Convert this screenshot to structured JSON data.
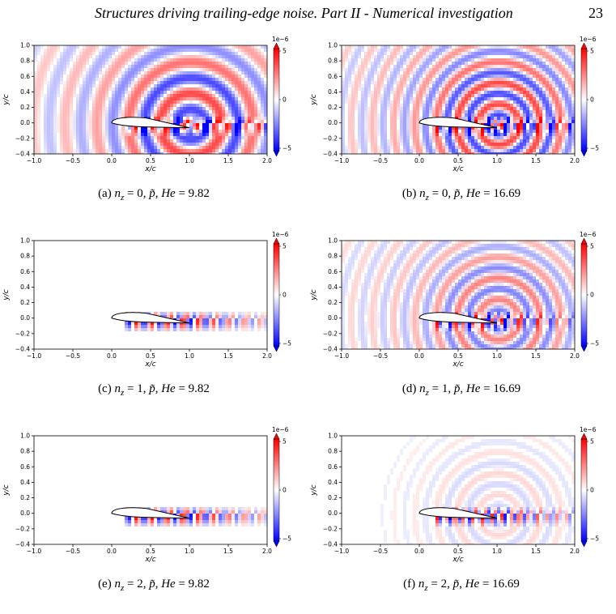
{
  "header": {
    "running_title": "Structures driving trailing-edge noise. Part II - Numerical investigation",
    "page_number": "23"
  },
  "axes": {
    "xlabel": "x/c",
    "ylabel": "y/c",
    "xticks": [
      "−1.0",
      "−0.5",
      "0.0",
      "0.5",
      "1.0",
      "1.5",
      "2.0"
    ],
    "yticks": [
      "−0.4",
      "−0.2",
      "0.0",
      "0.2",
      "0.4",
      "0.6",
      "0.8",
      "1.0"
    ],
    "xlim": [
      -1.0,
      2.0
    ],
    "ylim": [
      -0.4,
      1.0
    ],
    "colorbar_scale": "1e−6",
    "colorbar_ticks": [
      "5",
      "0",
      "−5"
    ],
    "colormap": [
      "#0000ff",
      "#ffffff",
      "#ff0000"
    ]
  },
  "panels": [
    {
      "caption_letter": "(a)",
      "nz": "0",
      "he": "9.82"
    },
    {
      "caption_letter": "(b)",
      "nz": "0",
      "he": "16.69"
    },
    {
      "caption_letter": "(c)",
      "nz": "1",
      "he": "9.82"
    },
    {
      "caption_letter": "(d)",
      "nz": "1",
      "he": "16.69"
    },
    {
      "caption_letter": "(e)",
      "nz": "2",
      "he": "9.82"
    },
    {
      "caption_letter": "(f)",
      "nz": "2",
      "he": "16.69"
    }
  ]
}
